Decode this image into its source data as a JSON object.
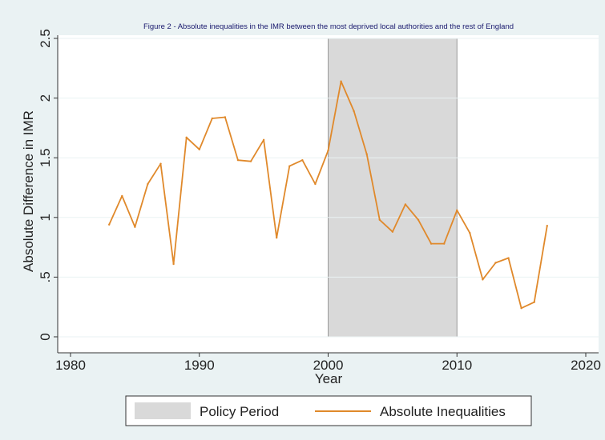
{
  "chart_data": {
    "type": "line",
    "title": "Figure 2 - Absolute inequalities in the IMR between the most deprived local authorities and the rest of England",
    "xlabel": "Year",
    "ylabel": "Absolute Difference in IMR",
    "xlim": [
      1980,
      2020
    ],
    "ylim": [
      0,
      2.5
    ],
    "x_ticks": [
      1980,
      1990,
      2000,
      2010,
      2020
    ],
    "y_ticks": [
      0,
      0.5,
      1,
      1.5,
      2,
      2.5
    ],
    "x_tick_labels": [
      "1980",
      "1990",
      "2000",
      "2010",
      "2020"
    ],
    "y_tick_labels": [
      "0",
      ".5",
      "1",
      "1.5",
      "2",
      "2.5"
    ],
    "grid": true,
    "shaded_region": {
      "name": "Policy Period",
      "x_start": 2000,
      "x_end": 2010,
      "color": "#d9d9d9"
    },
    "series": [
      {
        "name": "Absolute Inequalities",
        "color": "#e0892b",
        "x": [
          1983,
          1984,
          1985,
          1986,
          1987,
          1988,
          1989,
          1990,
          1991,
          1992,
          1993,
          1994,
          1995,
          1996,
          1997,
          1998,
          1999,
          2000,
          2001,
          2002,
          2003,
          2004,
          2005,
          2006,
          2007,
          2008,
          2009,
          2010,
          2011,
          2012,
          2013,
          2014,
          2015,
          2016,
          2017
        ],
        "values": [
          0.94,
          1.18,
          0.92,
          1.28,
          1.45,
          0.61,
          1.67,
          1.57,
          1.83,
          1.84,
          1.48,
          1.47,
          1.65,
          0.83,
          1.43,
          1.48,
          1.28,
          1.56,
          2.14,
          1.89,
          1.53,
          0.98,
          0.88,
          1.11,
          0.98,
          0.78,
          0.78,
          1.06,
          0.87,
          0.48,
          0.62,
          0.66,
          0.24,
          0.29,
          0.93
        ]
      }
    ],
    "legend": {
      "placement": "bottom",
      "entries": [
        "Policy Period",
        "Absolute Inequalities"
      ]
    }
  }
}
